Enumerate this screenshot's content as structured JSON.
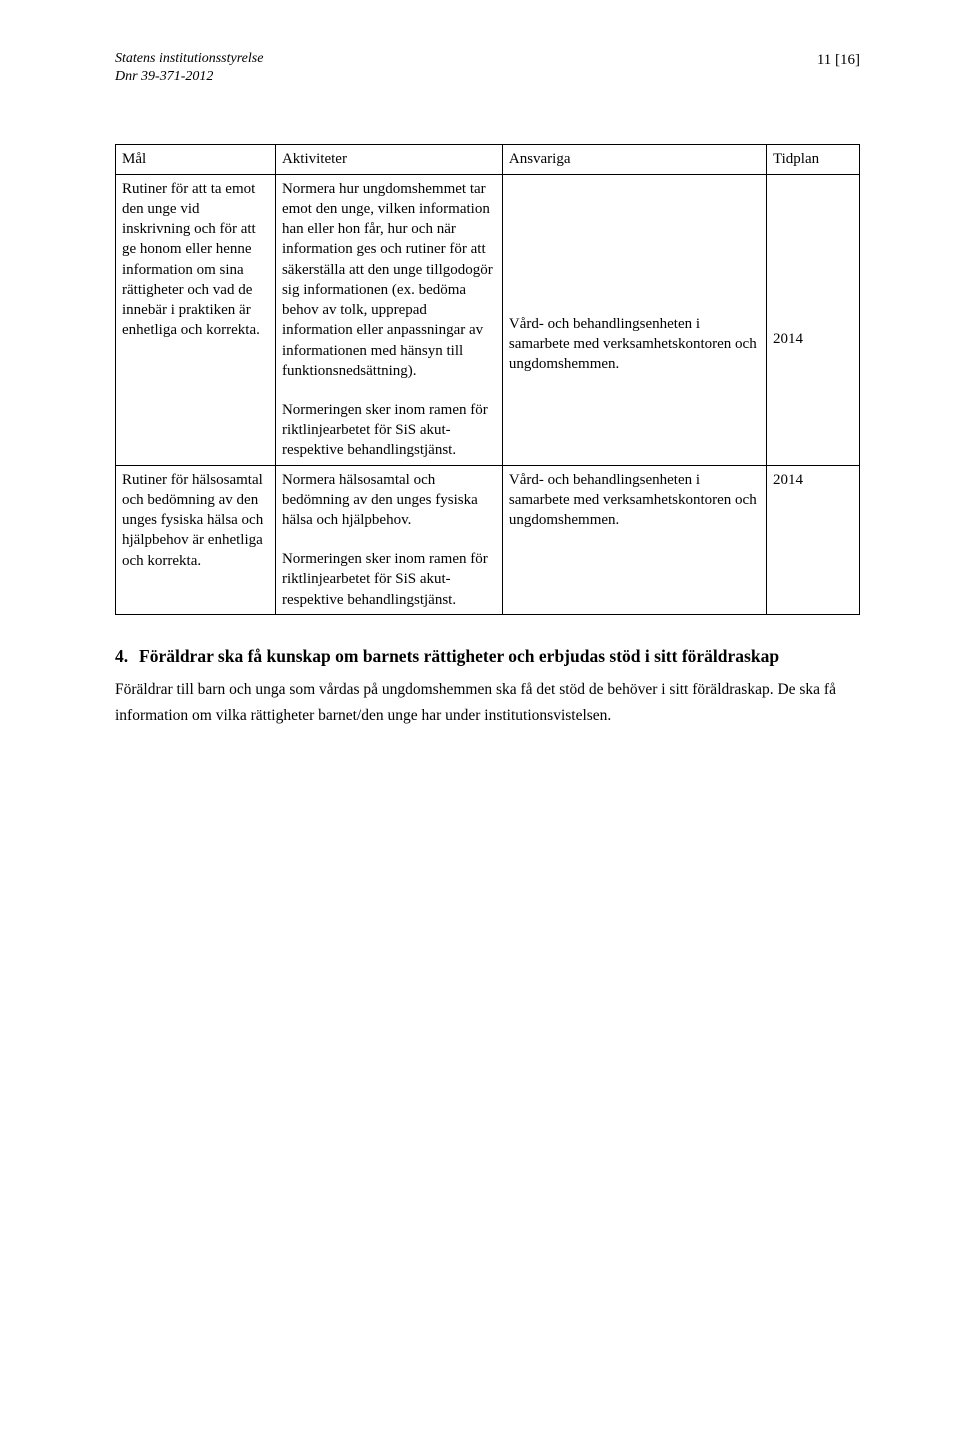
{
  "header": {
    "org": "Statens institutionsstyrelse",
    "dnr": "Dnr 39-371-2012",
    "page": "11 [16]"
  },
  "table": {
    "columns": [
      "Mål",
      "Aktiviteter",
      "Ansvariga",
      "Tidplan"
    ],
    "rows": [
      {
        "mal": "Rutiner för att ta emot den unge vid inskrivning och för att ge honom eller henne information om sina rättigheter och vad de innebär i praktiken är enhetliga och korrekta.",
        "aktiviteter_p1": "Normera hur ungdomshemmet tar emot den unge, vilken information han eller hon får, hur och när information ges och rutiner för att säkerställa att den unge tillgodogör sig informationen (ex. bedöma behov av tolk, upprepad information eller anpassningar av informationen med hänsyn till funktionsnedsättning).",
        "aktiviteter_p2": "Normeringen sker inom ramen för riktlinjearbetet för SiS akut- respektive behandlingstjänst.",
        "ansvariga": "Vård- och behandlingsenheten i samarbete med verksamhetskontoren och ungdomshemmen.",
        "tidplan": "2014"
      },
      {
        "mal": "Rutiner för hälsosamtal och bedömning av den unges fysiska hälsa och hjälpbehov är enhetliga och korrekta.",
        "aktiviteter_p1": "Normera hälsosamtal och bedömning av den unges fysiska hälsa och hjälpbehov.",
        "aktiviteter_p2": "Normeringen sker inom ramen för riktlinjearbetet för SiS akut- respektive behandlingstjänst.",
        "ansvariga": "Vård- och behandlingsenheten i samarbete med verksamhetskontoren och ungdomshemmen.",
        "tidplan": "2014"
      }
    ]
  },
  "section": {
    "number": "4.",
    "title": "Föräldrar ska få kunskap om barnets rättigheter och erbjudas stöd i sitt föräldraskap",
    "body": "Föräldrar till barn och unga som vårdas på ungdomshemmen ska få det stöd de behöver i sitt föräldraskap. De ska få information om vilka rättigheter barnet/den unge har under institutionsvistelsen."
  }
}
